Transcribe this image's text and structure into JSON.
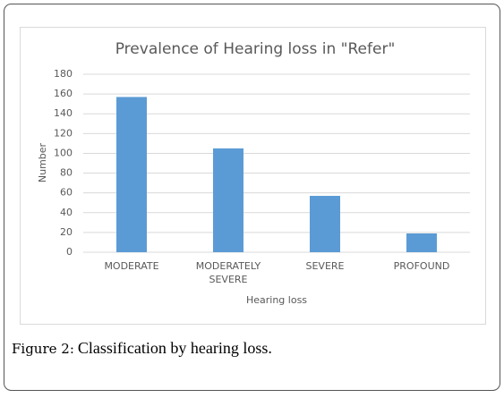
{
  "chart_data": {
    "type": "bar",
    "title": "Prevalence of Hearing loss in \"Refer\"",
    "x_label": "Hearing loss",
    "y_label": "Number",
    "categories": [
      "MODERATE",
      "MODERATELY SEVERE",
      "SEVERE",
      "PROFOUND"
    ],
    "values": [
      157,
      105,
      57,
      19
    ],
    "color": "#5b9bd5",
    "ylim": [
      0,
      180
    ],
    "yticks": [
      0,
      20,
      40,
      60,
      80,
      100,
      120,
      140,
      160,
      180
    ],
    "grid": true
  },
  "caption": {
    "label": "Figure 2:",
    "text": "Classification by hearing loss."
  }
}
